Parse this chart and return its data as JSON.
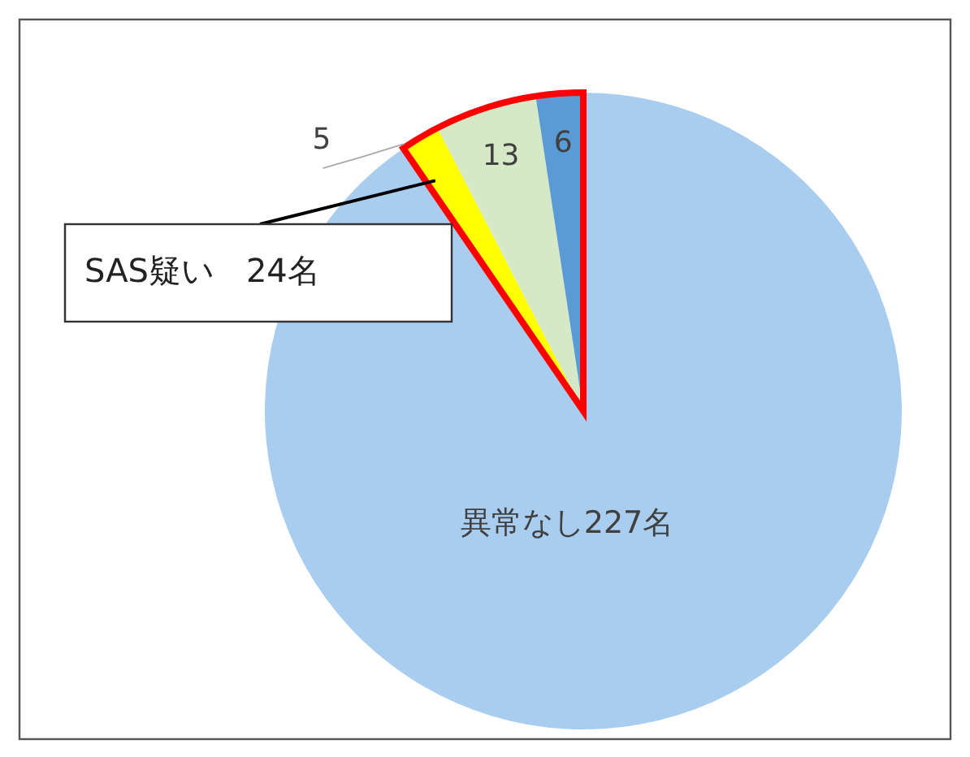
{
  "chart_data": {
    "type": "pie",
    "categories": [
      null,
      null,
      null,
      null
    ],
    "values": [
      227,
      5,
      13,
      6
    ],
    "colors": [
      "#a9cdef",
      "#ffff00",
      "#d5e9c6",
      "#5b9bd5"
    ],
    "value_labels": [
      "異常なし227名",
      "5",
      "13",
      "6"
    ],
    "annotations": [
      "SAS疑い　24名"
    ]
  }
}
